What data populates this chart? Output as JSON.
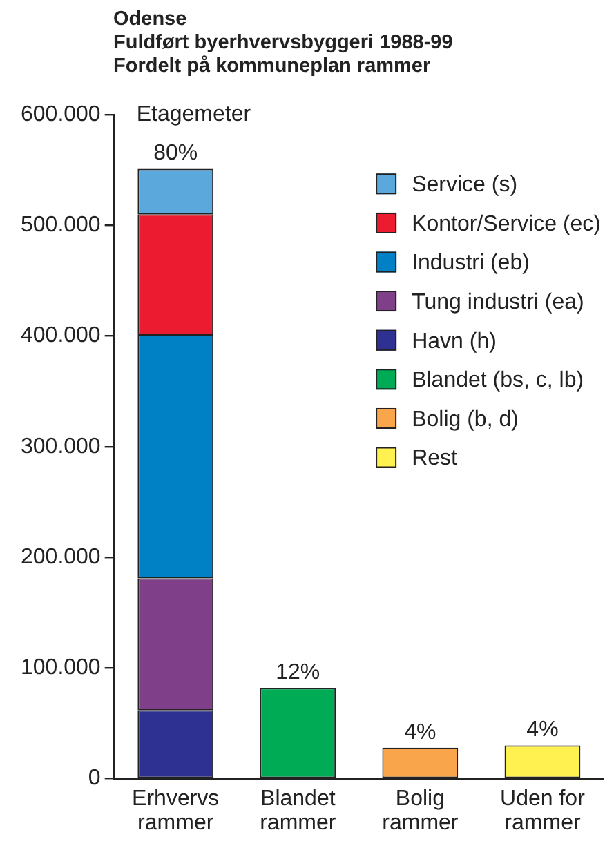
{
  "chart_data": {
    "type": "bar",
    "title": "Odense",
    "subtitle": "Fuldført byerhvervsbyggeri 1988-99\nFordelt på kommuneplan rammer",
    "ylabel": "Etagemeter",
    "categories": [
      "Erhvervs rammer",
      "Blandet rammer",
      "Bolig rammer",
      "Uden for rammer"
    ],
    "series": [
      {
        "name": "Havn (h)",
        "color": "#2e3191",
        "values": [
          62000,
          null,
          null,
          null
        ]
      },
      {
        "name": "Tung industri (ea)",
        "color": "#7f4089",
        "values": [
          119000,
          null,
          null,
          null
        ]
      },
      {
        "name": "Industri (eb)",
        "color": "#0080c5",
        "values": [
          220000,
          null,
          null,
          null
        ]
      },
      {
        "name": "Kontor/Service (ec)",
        "color": "#ed1b2f",
        "values": [
          109000,
          null,
          null,
          null
        ]
      },
      {
        "name": "Service (s)",
        "color": "#5ba8dc",
        "values": [
          41000,
          null,
          null,
          null
        ]
      },
      {
        "name": "Blandet (bs, c, lb)",
        "color": "#00ab55",
        "values": [
          null,
          82000,
          null,
          null
        ]
      },
      {
        "name": "Bolig (b, d)",
        "color": "#f9a54b",
        "values": [
          null,
          null,
          28000,
          null
        ]
      },
      {
        "name": "Rest",
        "color": "#fff14f",
        "values": [
          null,
          null,
          null,
          30000
        ]
      }
    ],
    "stacked": true,
    "ylim": [
      0,
      600000
    ],
    "yticks": [
      0,
      {
        "value": 100000,
        "label": "100.000"
      },
      {
        "value": 200000,
        "label": "200.000"
      },
      {
        "value": 300000,
        "label": "300.000"
      },
      {
        "value": 400000,
        "label": "400.000"
      },
      {
        "value": 500000,
        "label": "500.000"
      },
      {
        "value": 600000,
        "label": "600.000"
      }
    ],
    "grid": false,
    "legend": "top right",
    "annotations": [
      {
        "text": "80%",
        "x": "Erhvervs rammer",
        "y": 551000
      },
      {
        "text": "12%",
        "x": "Blandet rammer",
        "y": 82000
      },
      {
        "text": "4%",
        "x": "Bolig rammer",
        "y": 28000
      },
      {
        "text": "4%",
        "x": "Uden for rammer",
        "y": 30000
      }
    ]
  }
}
